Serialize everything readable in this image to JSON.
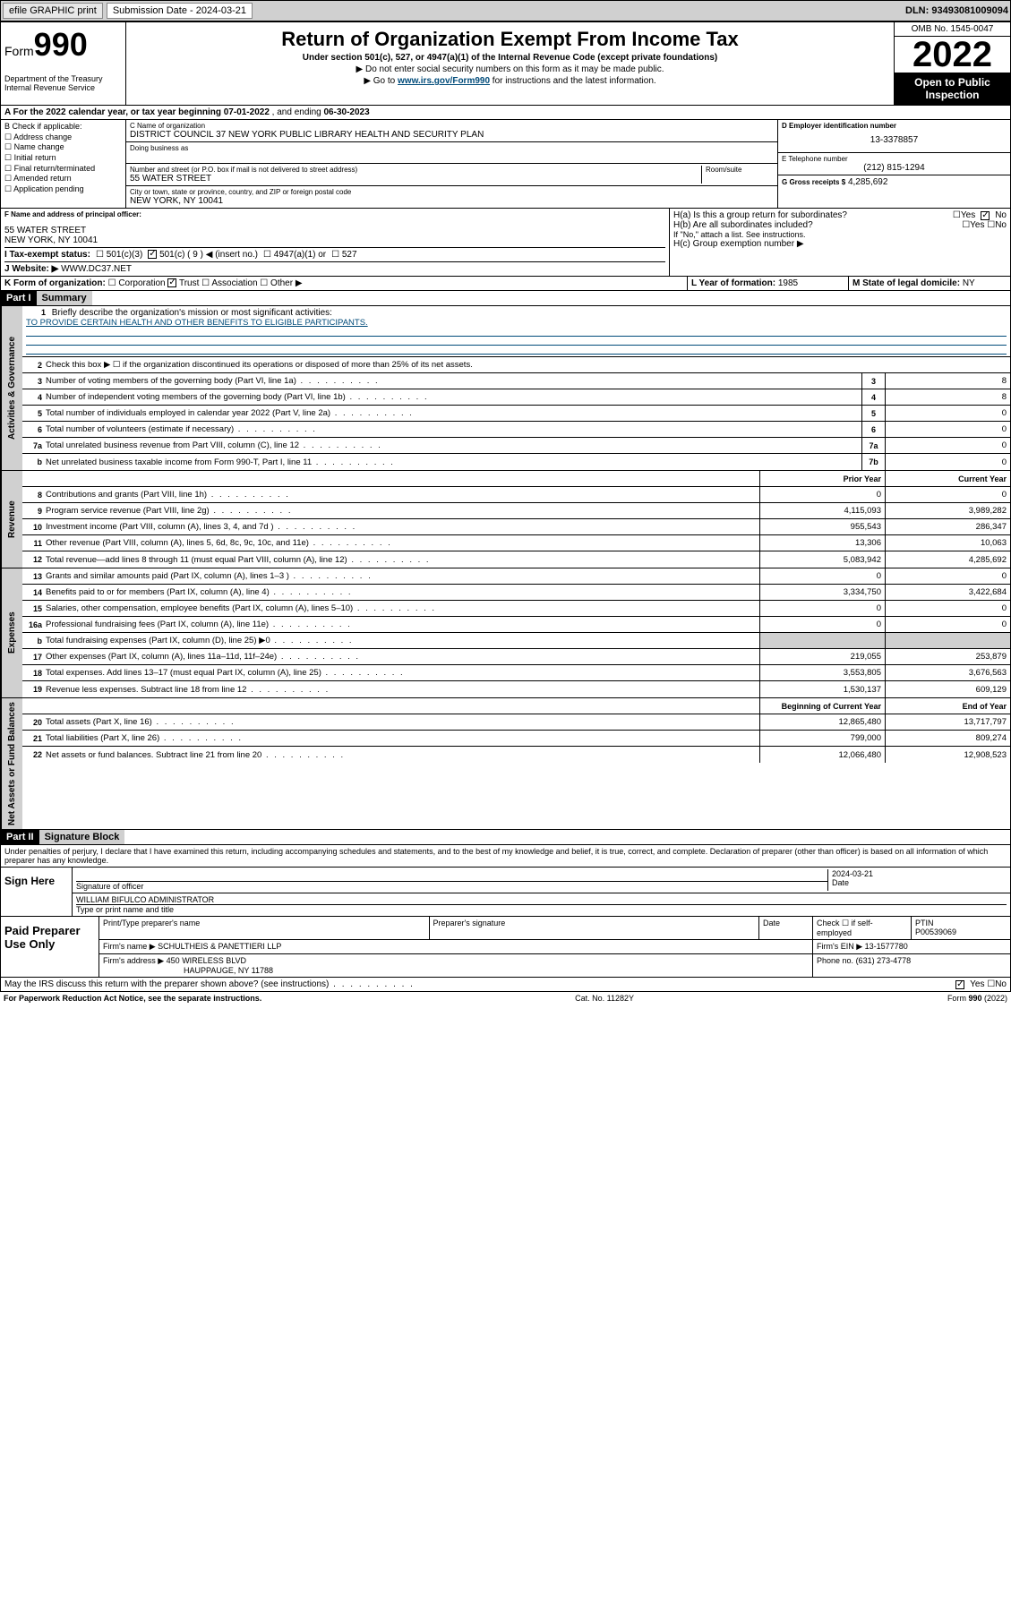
{
  "topbar": {
    "efile": "efile GRAPHIC print",
    "submission_label": "Submission Date - 2024-03-21",
    "dln": "DLN: 93493081009094"
  },
  "header": {
    "form_word": "Form",
    "form_num": "990",
    "dept": "Department of the Treasury\nInternal Revenue Service",
    "title": "Return of Organization Exempt From Income Tax",
    "subtitle": "Under section 501(c), 527, or 4947(a)(1) of the Internal Revenue Code (except private foundations)",
    "note1": "▶ Do not enter social security numbers on this form as it may be made public.",
    "note2_pre": "▶ Go to ",
    "note2_link": "www.irs.gov/Form990",
    "note2_post": " for instructions and the latest information.",
    "omb": "OMB No. 1545-0047",
    "year": "2022",
    "open_pub": "Open to Public Inspection"
  },
  "period": {
    "label_a": "A For the 2022 calendar year, or tax year beginning ",
    "begin": "07-01-2022",
    "mid": " , and ending ",
    "end": "06-30-2023"
  },
  "blockB": {
    "title": "B Check if applicable:",
    "opts": [
      "Address change",
      "Name change",
      "Initial return",
      "Final return/terminated",
      "Amended return",
      "Application pending"
    ]
  },
  "blockC": {
    "name_lbl": "C Name of organization",
    "name": "DISTRICT COUNCIL 37 NEW YORK PUBLIC LIBRARY HEALTH AND SECURITY PLAN",
    "dba_lbl": "Doing business as",
    "addr_lbl": "Number and street (or P.O. box if mail is not delivered to street address)",
    "room_lbl": "Room/suite",
    "addr": "55 WATER STREET",
    "city_lbl": "City or town, state or province, country, and ZIP or foreign postal code",
    "city": "NEW YORK, NY  10041"
  },
  "blockD": {
    "lbl": "D Employer identification number",
    "val": "13-3378857"
  },
  "blockE": {
    "lbl": "E Telephone number",
    "val": "(212) 815-1294"
  },
  "blockG": {
    "lbl": "G Gross receipts $",
    "val": "4,285,692"
  },
  "blockF": {
    "lbl": "F Name and address of principal officer:",
    "addr1": "55 WATER STREET",
    "addr2": "NEW YORK, NY  10041"
  },
  "blockH": {
    "ha": "H(a)  Is this a group return for subordinates?",
    "hb": "H(b)  Are all subordinates included?",
    "hb_note": "If \"No,\" attach a list. See instructions.",
    "hc": "H(c)  Group exemption number ▶"
  },
  "blockI": {
    "lbl": "I   Tax-exempt status:",
    "o1": "501(c)(3)",
    "o2": "501(c) ( 9 ) ◀ (insert no.)",
    "o3": "4947(a)(1) or",
    "o4": "527"
  },
  "blockJ": {
    "lbl": "J   Website: ▶",
    "val": "WWW.DC37.NET"
  },
  "blockK": {
    "lbl": "K Form of organization:",
    "o1": "Corporation",
    "o2": "Trust",
    "o3": "Association",
    "o4": "Other ▶"
  },
  "blockL": {
    "lbl": "L Year of formation:",
    "val": "1985"
  },
  "blockM": {
    "lbl": "M State of legal domicile:",
    "val": "NY"
  },
  "part1": {
    "hdr": "Part I",
    "title": "Summary",
    "l1": "Briefly describe the organization's mission or most significant activities:",
    "mission": "TO PROVIDE CERTAIN HEALTH AND OTHER BENEFITS TO ELIGIBLE PARTICIPANTS.",
    "l2": "Check this box ▶ ☐  if the organization discontinued its operations or disposed of more than 25% of its net assets.",
    "rows_gov": [
      {
        "n": "3",
        "t": "Number of voting members of the governing body (Part VI, line 1a)",
        "box": "3",
        "v": "8"
      },
      {
        "n": "4",
        "t": "Number of independent voting members of the governing body (Part VI, line 1b)",
        "box": "4",
        "v": "8"
      },
      {
        "n": "5",
        "t": "Total number of individuals employed in calendar year 2022 (Part V, line 2a)",
        "box": "5",
        "v": "0"
      },
      {
        "n": "6",
        "t": "Total number of volunteers (estimate if necessary)",
        "box": "6",
        "v": "0"
      },
      {
        "n": "7a",
        "t": "Total unrelated business revenue from Part VIII, column (C), line 12",
        "box": "7a",
        "v": "0"
      },
      {
        "n": "b",
        "t": "Net unrelated business taxable income from Form 990-T, Part I, line 11",
        "box": "7b",
        "v": "0"
      }
    ],
    "col_prior": "Prior Year",
    "col_current": "Current Year",
    "rows_rev": [
      {
        "n": "8",
        "t": "Contributions and grants (Part VIII, line 1h)",
        "p": "0",
        "c": "0"
      },
      {
        "n": "9",
        "t": "Program service revenue (Part VIII, line 2g)",
        "p": "4,115,093",
        "c": "3,989,282"
      },
      {
        "n": "10",
        "t": "Investment income (Part VIII, column (A), lines 3, 4, and 7d )",
        "p": "955,543",
        "c": "286,347"
      },
      {
        "n": "11",
        "t": "Other revenue (Part VIII, column (A), lines 5, 6d, 8c, 9c, 10c, and 11e)",
        "p": "13,306",
        "c": "10,063"
      },
      {
        "n": "12",
        "t": "Total revenue—add lines 8 through 11 (must equal Part VIII, column (A), line 12)",
        "p": "5,083,942",
        "c": "4,285,692"
      }
    ],
    "rows_exp": [
      {
        "n": "13",
        "t": "Grants and similar amounts paid (Part IX, column (A), lines 1–3 )",
        "p": "0",
        "c": "0"
      },
      {
        "n": "14",
        "t": "Benefits paid to or for members (Part IX, column (A), line 4)",
        "p": "3,334,750",
        "c": "3,422,684"
      },
      {
        "n": "15",
        "t": "Salaries, other compensation, employee benefits (Part IX, column (A), lines 5–10)",
        "p": "0",
        "c": "0"
      },
      {
        "n": "16a",
        "t": "Professional fundraising fees (Part IX, column (A), line 11e)",
        "p": "0",
        "c": "0"
      },
      {
        "n": "b",
        "t": "Total fundraising expenses (Part IX, column (D), line 25) ▶0",
        "p": "",
        "c": "",
        "shade": true
      },
      {
        "n": "17",
        "t": "Other expenses (Part IX, column (A), lines 11a–11d, 11f–24e)",
        "p": "219,055",
        "c": "253,879"
      },
      {
        "n": "18",
        "t": "Total expenses. Add lines 13–17 (must equal Part IX, column (A), line 25)",
        "p": "3,553,805",
        "c": "3,676,563"
      },
      {
        "n": "19",
        "t": "Revenue less expenses. Subtract line 18 from line 12",
        "p": "1,530,137",
        "c": "609,129"
      }
    ],
    "col_beg": "Beginning of Current Year",
    "col_end": "End of Year",
    "rows_net": [
      {
        "n": "20",
        "t": "Total assets (Part X, line 16)",
        "p": "12,865,480",
        "c": "13,717,797"
      },
      {
        "n": "21",
        "t": "Total liabilities (Part X, line 26)",
        "p": "799,000",
        "c": "809,274"
      },
      {
        "n": "22",
        "t": "Net assets or fund balances. Subtract line 21 from line 20",
        "p": "12,066,480",
        "c": "12,908,523"
      }
    ]
  },
  "part2": {
    "hdr": "Part II",
    "title": "Signature Block",
    "jurat": "Under penalties of perjury, I declare that I have examined this return, including accompanying schedules and statements, and to the best of my knowledge and belief, it is true, correct, and complete. Declaration of preparer (other than officer) is based on all information of which preparer has any knowledge.",
    "sign_here": "Sign Here",
    "sig_officer": "Signature of officer",
    "sig_date": "2024-03-21",
    "date_lbl": "Date",
    "officer_name": "WILLIAM BIFULCO  ADMINISTRATOR",
    "name_title_lbl": "Type or print name and title",
    "paid_prep": "Paid Preparer Use Only",
    "pp_name_lbl": "Print/Type preparer's name",
    "pp_sig_lbl": "Preparer's signature",
    "pp_date_lbl": "Date",
    "pp_check": "Check ☐ if self-employed",
    "ptin_lbl": "PTIN",
    "ptin": "P00539069",
    "firm_name_lbl": "Firm's name    ▶",
    "firm_name": "SCHULTHEIS & PANETTIERI LLP",
    "firm_ein_lbl": "Firm's EIN ▶",
    "firm_ein": "13-1577780",
    "firm_addr_lbl": "Firm's address ▶",
    "firm_addr1": "450 WIRELESS BLVD",
    "firm_addr2": "HAUPPAUGE, NY  11788",
    "phone_lbl": "Phone no.",
    "phone": "(631) 273-4778",
    "discuss": "May the IRS discuss this return with the preparer shown above? (see instructions)"
  },
  "footer": {
    "left": "For Paperwork Reduction Act Notice, see the separate instructions.",
    "mid": "Cat. No. 11282Y",
    "right": "Form 990 (2022)"
  },
  "vtabs": {
    "gov": "Activities & Governance",
    "rev": "Revenue",
    "exp": "Expenses",
    "net": "Net Assets or Fund Balances"
  }
}
